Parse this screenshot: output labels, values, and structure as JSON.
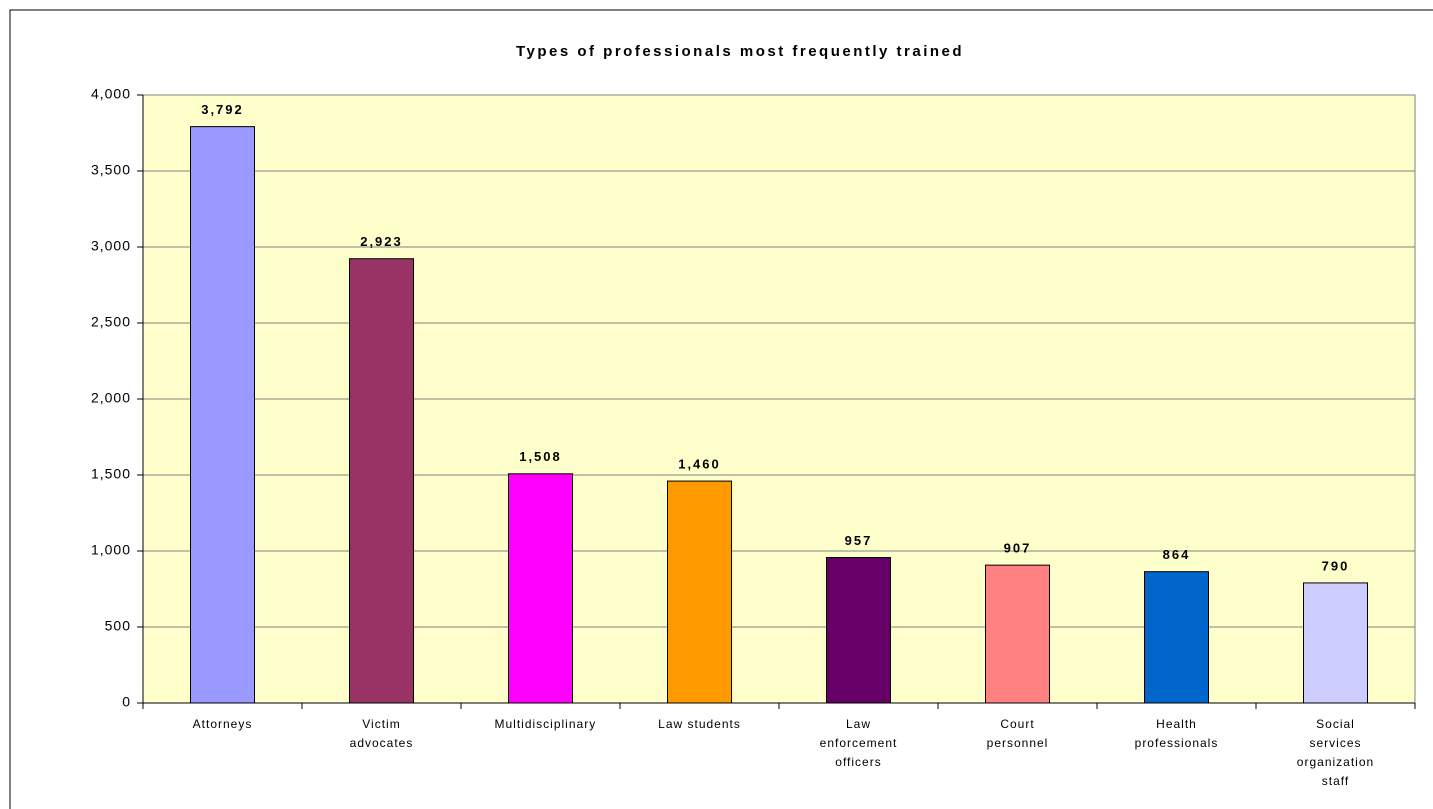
{
  "chart_data": {
    "type": "bar",
    "title": "Types of professionals most frequently trained",
    "categories": [
      "Attorneys",
      "Victim advocates",
      "Multidisciplinary",
      "Law students",
      "Law enforcement officers",
      "Court personnel",
      "Health professionals",
      "Social services organization staff"
    ],
    "values": [
      3792,
      2923,
      1508,
      1460,
      957,
      907,
      864,
      790
    ],
    "value_labels": [
      "3,792",
      "2,923",
      "1,508",
      "1,460",
      "957",
      "907",
      "864",
      "790"
    ],
    "colors": [
      "#9999ff",
      "#993366",
      "#ff00ff",
      "#ff9900",
      "#660066",
      "#ff8080",
      "#0066cc",
      "#ccccff"
    ],
    "ylim": [
      0,
      4000
    ],
    "yticks": [
      0,
      500,
      {
        "value": 1000,
        "label": "1,000"
      },
      {
        "value": 1500,
        "label": "1,500"
      },
      {
        "value": 2000,
        "label": "2,000"
      },
      {
        "value": 2500,
        "label": "2,500"
      },
      {
        "value": 3000,
        "label": "3,000"
      },
      {
        "value": 3500,
        "label": "3,500"
      },
      {
        "value": 4000,
        "label": "4,000"
      }
    ],
    "grid": true
  }
}
